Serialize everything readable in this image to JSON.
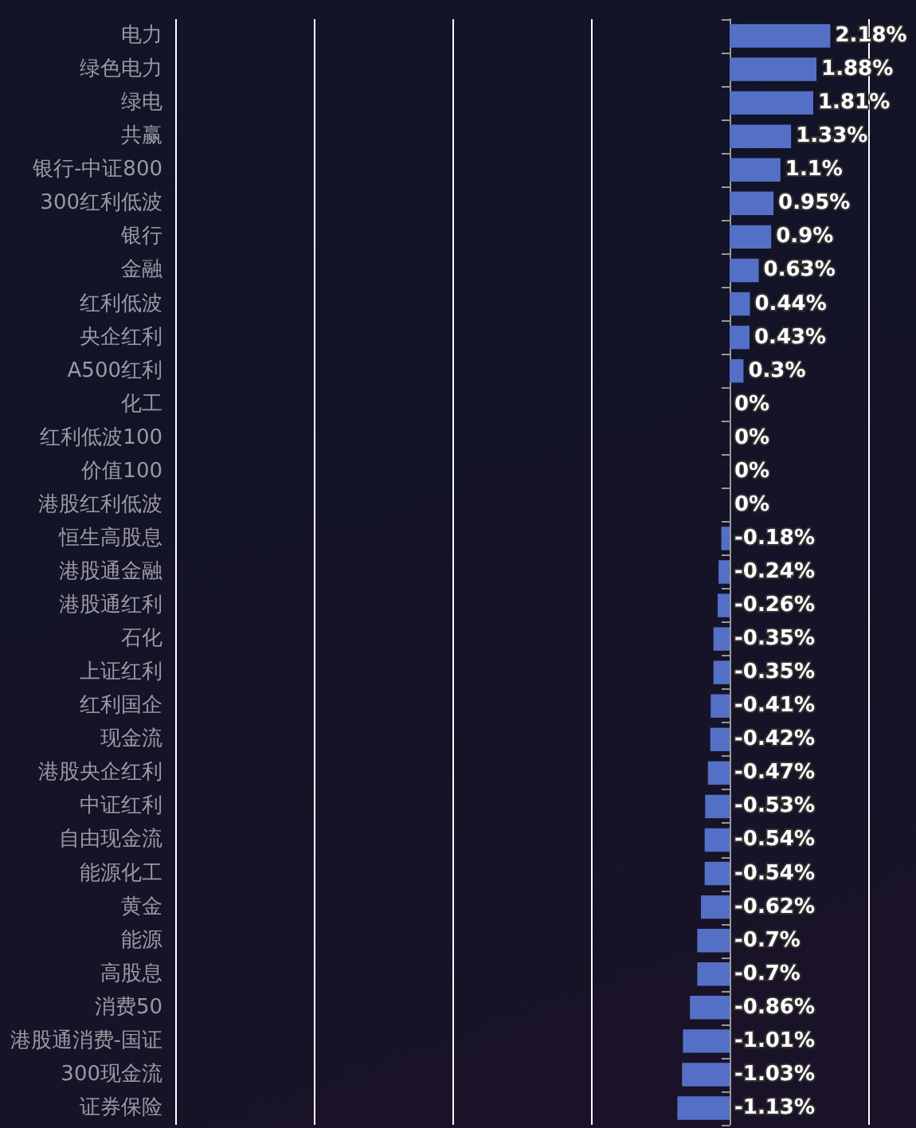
{
  "chart_data": {
    "type": "bar",
    "orientation": "horizontal",
    "categories": [
      "电力",
      "绿色电力",
      "绿电",
      "共赢",
      "银行-中证800",
      "300红利低波",
      "银行",
      "金融",
      "红利低波",
      "央企红利",
      "A500红利",
      "化工",
      "红利低波100",
      "价值100",
      "港股红利低波",
      "恒生高股息",
      "港股通金融",
      "港股通红利",
      "石化",
      "上证红利",
      "红利国企",
      "现金流",
      "港股央企红利",
      "中证红利",
      "自由现金流",
      "能源化工",
      "黄金",
      "能源",
      "高股息",
      "消费50",
      "港股通消费-国证",
      "300现金流",
      "证券保险"
    ],
    "values": [
      2.18,
      1.88,
      1.81,
      1.33,
      1.1,
      0.95,
      0.9,
      0.63,
      0.44,
      0.43,
      0.3,
      0,
      0,
      0,
      0,
      -0.18,
      -0.24,
      -0.26,
      -0.35,
      -0.35,
      -0.41,
      -0.42,
      -0.47,
      -0.53,
      -0.54,
      -0.54,
      -0.62,
      -0.7,
      -0.7,
      -0.86,
      -1.01,
      -1.03,
      -1.13
    ],
    "value_labels": [
      "2.18%",
      "1.88%",
      "1.81%",
      "1.33%",
      "1.1%",
      "0.95%",
      "0.9%",
      "0.63%",
      "0.44%",
      "0.43%",
      "0.3%",
      "0%",
      "0%",
      "0%",
      "0%",
      "-0.18%",
      "-0.24%",
      "-0.26%",
      "-0.35%",
      "-0.35%",
      "-0.41%",
      "-0.42%",
      "-0.47%",
      "-0.53%",
      "-0.54%",
      "-0.54%",
      "-0.62%",
      "-0.7%",
      "-0.7%",
      "-0.86%",
      "-1.01%",
      "-1.03%",
      "-1.13%"
    ],
    "color": "#5470c6",
    "xlim": [
      -12,
      3
    ],
    "xticks": [
      {
        "value": -12,
        "label": null
      },
      {
        "value": -9,
        "label": null
      },
      {
        "value": -6,
        "label": null
      },
      {
        "value": -3,
        "label": null
      },
      {
        "value": 0,
        "label": null
      },
      {
        "value": 3,
        "label": null
      }
    ],
    "grid": "x",
    "tick_labels": "y"
  }
}
